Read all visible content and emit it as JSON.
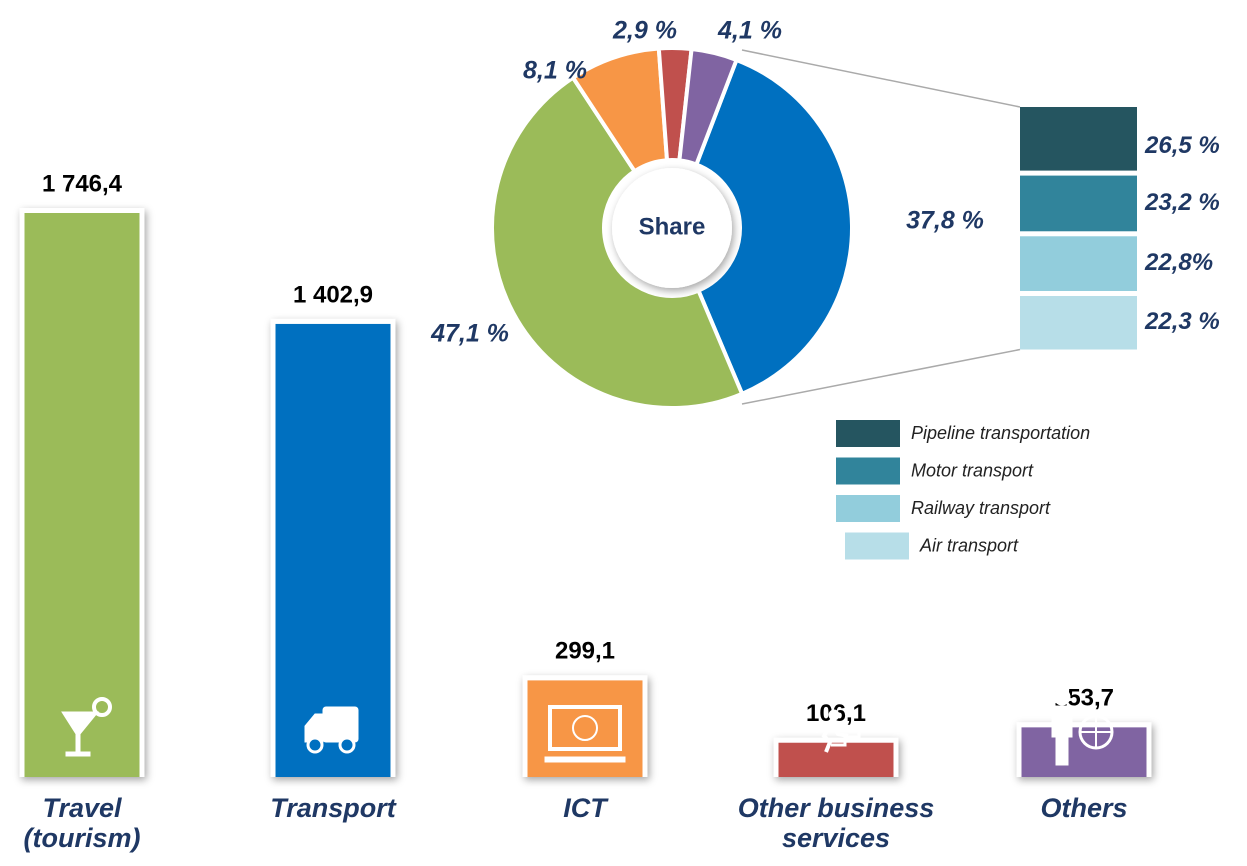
{
  "chart_data": [
    {
      "type": "bar",
      "categories": [
        "Travel\n(tourism)",
        "Transport",
        "ICT",
        "Other business\nservices",
        "Others"
      ],
      "values": [
        1746.4,
        1402.9,
        299.1,
        106.1,
        153.7
      ],
      "value_labels": [
        "1 746,4",
        "1 402,9",
        "299,1",
        "106,1",
        "153,7"
      ],
      "colors": [
        "#9bbb59",
        "#0070c0",
        "#f79646",
        "#c0504d",
        "#8064a2"
      ]
    },
    {
      "type": "donut",
      "title": "Share",
      "values": [
        37.8,
        47.1,
        8.1,
        2.9,
        4.1
      ],
      "value_labels": [
        "37,8 %",
        "47,1 %",
        "8,1 %",
        "2,9 %",
        "4,1 %"
      ],
      "colors": [
        "#0070c0",
        "#9bbb59",
        "#f79646",
        "#c0504d",
        "#8064a2"
      ]
    },
    {
      "type": "stack",
      "categories": [
        "Pipeline transportation",
        "Motor transport",
        "Railway transport",
        "Air transport"
      ],
      "values": [
        26.5,
        23.2,
        22.8,
        22.3
      ],
      "value_labels": [
        "26,5 %",
        "23,2 %",
        "22,8%",
        "22,3 %"
      ],
      "colors": [
        "#255560",
        "#31849b",
        "#92cddc",
        "#b7dee8"
      ],
      "legend": true
    }
  ]
}
